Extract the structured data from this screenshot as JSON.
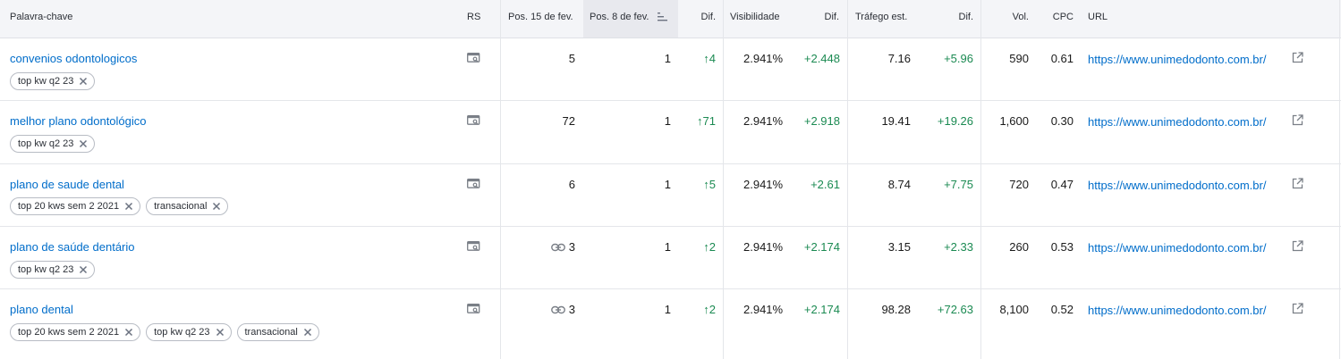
{
  "header": {
    "keyword": "Palavra-chave",
    "rs": "RS",
    "pos_prev": "Pos. 15 de fev.",
    "pos_curr": "Pos. 8 de fev.",
    "pos_diff": "Dif.",
    "visibility": "Visibilidade",
    "vis_diff": "Dif.",
    "traffic": "Tráfego est.",
    "traffic_diff": "Dif.",
    "volume": "Vol.",
    "cpc": "CPC",
    "url": "URL"
  },
  "rows": [
    {
      "keyword": "convenios odontologicos",
      "tags": [
        "top kw q2 23"
      ],
      "pos_prev": "5",
      "pos_prev_link": false,
      "pos_curr": "1",
      "pos_diff": "4",
      "visibility": "2.941%",
      "vis_diff": "+2.448",
      "traffic": "7.16",
      "traffic_diff": "+5.96",
      "volume": "590",
      "cpc": "0.61",
      "url": "https://www.unimedodonto.com.br/"
    },
    {
      "keyword": "melhor plano odontológico",
      "tags": [
        "top kw q2 23"
      ],
      "pos_prev": "72",
      "pos_prev_link": false,
      "pos_curr": "1",
      "pos_diff": "71",
      "visibility": "2.941%",
      "vis_diff": "+2.918",
      "traffic": "19.41",
      "traffic_diff": "+19.26",
      "volume": "1,600",
      "cpc": "0.30",
      "url": "https://www.unimedodonto.com.br/"
    },
    {
      "keyword": "plano de saude dental",
      "tags": [
        "top 20 kws sem 2 2021",
        "transacional"
      ],
      "pos_prev": "6",
      "pos_prev_link": false,
      "pos_curr": "1",
      "pos_diff": "5",
      "visibility": "2.941%",
      "vis_diff": "+2.61",
      "traffic": "8.74",
      "traffic_diff": "+7.75",
      "volume": "720",
      "cpc": "0.47",
      "url": "https://www.unimedodonto.com.br/"
    },
    {
      "keyword": "plano de saúde dentário",
      "tags": [
        "top kw q2 23"
      ],
      "pos_prev": "3",
      "pos_prev_link": true,
      "pos_curr": "1",
      "pos_diff": "2",
      "visibility": "2.941%",
      "vis_diff": "+2.174",
      "traffic": "3.15",
      "traffic_diff": "+2.33",
      "volume": "260",
      "cpc": "0.53",
      "url": "https://www.unimedodonto.com.br/"
    },
    {
      "keyword": "plano dental",
      "tags": [
        "top 20 kws sem 2 2021",
        "top kw q2 23",
        "transacional"
      ],
      "pos_prev": "3",
      "pos_prev_link": true,
      "pos_curr": "1",
      "pos_diff": "2",
      "visibility": "2.941%",
      "vis_diff": "+2.174",
      "traffic": "98.28",
      "traffic_diff": "+72.63",
      "volume": "8,100",
      "cpc": "0.52",
      "url": "https://www.unimedodonto.com.br/"
    }
  ],
  "colors": {
    "link": "#006dca",
    "positive": "#1b8a52",
    "header_bg": "#f4f5f8"
  },
  "icons": {
    "serp": "serp-features-icon",
    "link": "link-icon",
    "external": "external-link-icon",
    "sort": "sort-descending-icon",
    "remove_tag": "close-icon"
  }
}
